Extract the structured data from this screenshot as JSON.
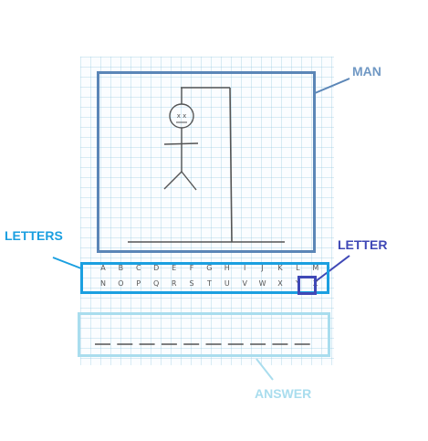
{
  "callouts": {
    "man": "MAN",
    "letters": "LETTERS",
    "letter": "LETTER",
    "answer": "ANSWER"
  },
  "letter_rows": [
    [
      "A",
      "B",
      "C",
      "D",
      "E",
      "F",
      "G",
      "H",
      "I",
      "J",
      "K",
      "L",
      "M"
    ],
    [
      "N",
      "O",
      "P",
      "Q",
      "R",
      "S",
      "T",
      "U",
      "V",
      "W",
      "X",
      "Y",
      "Z"
    ]
  ],
  "selected_letter": "Z",
  "answer_blank_count": 10,
  "figure_face": "x x",
  "colors": {
    "man": "#5b86b7",
    "letters": "#1a9fe0",
    "letter": "#3f48b6",
    "answer": "#a9ddee"
  }
}
